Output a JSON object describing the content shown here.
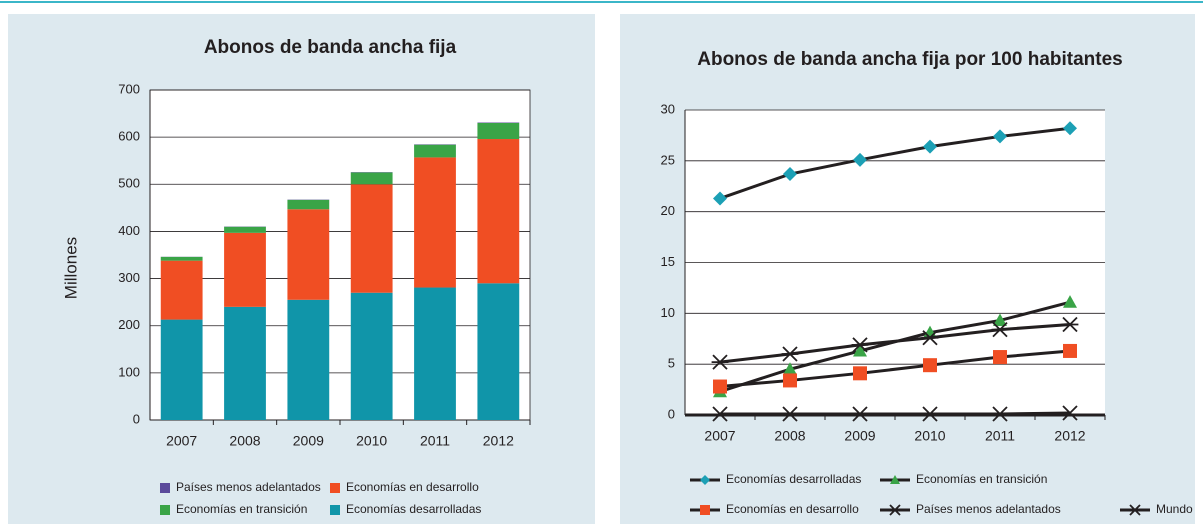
{
  "chart_data": [
    {
      "type": "bar",
      "stacked": true,
      "title": "Abonos de banda ancha fija",
      "y_label": "Millones",
      "categories": [
        "2007",
        "2008",
        "2009",
        "2010",
        "2011",
        "2012"
      ],
      "series": [
        {
          "name": "Economías desarrolladas",
          "color": "#1095a9",
          "values": [
            213,
            240,
            255,
            270,
            281,
            290
          ]
        },
        {
          "name": "Economías en desarrollo",
          "color": "#f04e23",
          "values": [
            125,
            157,
            192,
            230,
            276,
            306
          ]
        },
        {
          "name": "Economías en transición",
          "color": "#3aa447",
          "values": [
            8,
            13,
            20,
            25,
            27,
            34
          ]
        },
        {
          "name": "Países menos adelantados",
          "color": "#5b4a9b",
          "values": [
            0.3,
            0.5,
            0.6,
            0.7,
            0.8,
            1
          ]
        }
      ],
      "ylim": [
        0,
        700
      ],
      "yticks": [
        0,
        100,
        200,
        300,
        400,
        500,
        600,
        700
      ],
      "grid": true
    },
    {
      "type": "line",
      "title": "Abonos de banda ancha fija por 100 habitantes",
      "categories": [
        "2007",
        "2008",
        "2009",
        "2010",
        "2011",
        "2012"
      ],
      "line_color": "#231f20",
      "series": [
        {
          "name": "Economías desarrolladas",
          "color": "#1ca0b5",
          "marker": "diamond",
          "values": [
            21.3,
            23.7,
            25.1,
            26.4,
            27.4,
            28.2
          ]
        },
        {
          "name": "Economías en transición",
          "color": "#3aa447",
          "marker": "triangle",
          "values": [
            2.3,
            4.5,
            6.3,
            8.1,
            9.3,
            11.1
          ]
        },
        {
          "name": "Economías en desarrollo",
          "color": "#f04e23",
          "marker": "square",
          "values": [
            2.8,
            3.4,
            4.1,
            4.9,
            5.7,
            6.3
          ]
        },
        {
          "name": "Países menos adelantados",
          "color": "#231f20",
          "marker": "x",
          "values": [
            0.1,
            0.1,
            0.1,
            0.1,
            0.1,
            0.2
          ]
        },
        {
          "name": "Mundo",
          "color": "#231f20",
          "marker": "star",
          "values": [
            5.2,
            6.0,
            6.9,
            7.6,
            8.4,
            8.9
          ]
        }
      ],
      "ylim": [
        0,
        30
      ],
      "yticks": [
        0,
        5,
        10,
        15,
        20,
        25,
        30
      ],
      "grid": true
    }
  ]
}
